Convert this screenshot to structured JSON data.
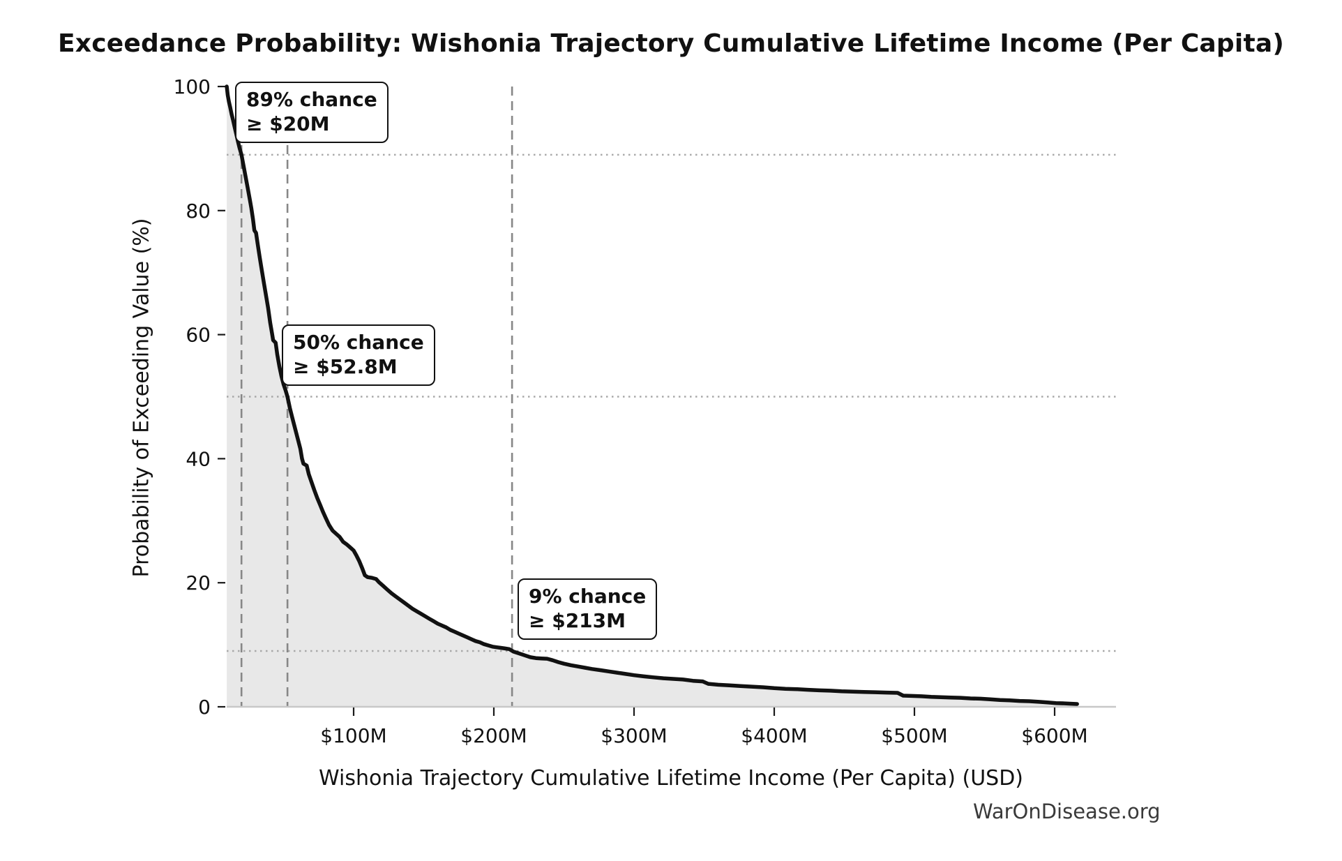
{
  "watermark": "WarOnDisease.org",
  "chart_data": {
    "type": "line",
    "title": "Exceedance Probability: Wishonia Trajectory Cumulative Lifetime Income (Per Capita)",
    "xlabel": "Wishonia Trajectory Cumulative Lifetime Income (Per Capita) (USD)",
    "ylabel": "Probability of Exceeding Value (%)",
    "x_unit": "USD millions",
    "xlim": [
      9.5,
      644
    ],
    "ylim": [
      0,
      100
    ],
    "grid": "reference lines only",
    "legend": "none",
    "x_ticks": [
      {
        "value": 100,
        "label": "$100M"
      },
      {
        "value": 200,
        "label": "$200M"
      },
      {
        "value": 300,
        "label": "$300M"
      },
      {
        "value": 400,
        "label": "$400M"
      },
      {
        "value": 500,
        "label": "$500M"
      },
      {
        "value": 600,
        "label": "$600M"
      }
    ],
    "y_ticks": [
      {
        "value": 0,
        "label": "0"
      },
      {
        "value": 20,
        "label": "20"
      },
      {
        "value": 40,
        "label": "40"
      },
      {
        "value": 60,
        "label": "60"
      },
      {
        "value": 80,
        "label": "80"
      },
      {
        "value": 100,
        "label": "100"
      }
    ],
    "annotations": [
      {
        "label_line1": "89% chance",
        "label_line2": "≥ $20M",
        "probability_pct": 89,
        "value_musd": 20
      },
      {
        "label_line1": "50% chance",
        "label_line2": "≥ $52.8M",
        "probability_pct": 50,
        "value_musd": 52.8
      },
      {
        "label_line1": "9% chance",
        "label_line2": "≥ $213M",
        "probability_pct": 9,
        "value_musd": 213
      }
    ],
    "points": [
      [
        9.5,
        100
      ],
      [
        10.2,
        98.6
      ],
      [
        11,
        97.6
      ],
      [
        12,
        96.6
      ],
      [
        13,
        95.5
      ],
      [
        14,
        94.6
      ],
      [
        15,
        93.6
      ],
      [
        16.2,
        92.4
      ],
      [
        17.4,
        91.2
      ],
      [
        18.6,
        90.1
      ],
      [
        20,
        89
      ],
      [
        21.5,
        87.2
      ],
      [
        23,
        85.4
      ],
      [
        24.5,
        83.6
      ],
      [
        26,
        81.7
      ],
      [
        27,
        80.4
      ],
      [
        28.2,
        78.6
      ],
      [
        29.2,
        76.8
      ],
      [
        30.4,
        76.4
      ],
      [
        31.5,
        74.7
      ],
      [
        33,
        72.5
      ],
      [
        34.5,
        70.4
      ],
      [
        36,
        68.3
      ],
      [
        37.5,
        66.3
      ],
      [
        39,
        64.3
      ],
      [
        40.5,
        61.9
      ],
      [
        41.8,
        60.2
      ],
      [
        42.6,
        59.1
      ],
      [
        44.4,
        58.7
      ],
      [
        45.5,
        56.8
      ],
      [
        47,
        54.9
      ],
      [
        48.5,
        53.3
      ],
      [
        50,
        52
      ],
      [
        51.5,
        51
      ],
      [
        52.8,
        50
      ],
      [
        54.5,
        48.2
      ],
      [
        56,
        46.8
      ],
      [
        57.5,
        45.5
      ],
      [
        59,
        44.2
      ],
      [
        60.5,
        42.9
      ],
      [
        62,
        41.6
      ],
      [
        63.2,
        40
      ],
      [
        64.2,
        39.2
      ],
      [
        66.5,
        38.9
      ],
      [
        68,
        37.5
      ],
      [
        70,
        36.2
      ],
      [
        72,
        34.9
      ],
      [
        74,
        33.7
      ],
      [
        76,
        32.6
      ],
      [
        78,
        31.5
      ],
      [
        80,
        30.5
      ],
      [
        82.5,
        29.3
      ],
      [
        85,
        28.4
      ],
      [
        87.5,
        27.9
      ],
      [
        90,
        27.4
      ],
      [
        92.5,
        26.6
      ],
      [
        95,
        26.2
      ],
      [
        97.5,
        25.7
      ],
      [
        100,
        25.2
      ],
      [
        102,
        24.4
      ],
      [
        104,
        23.5
      ],
      [
        106,
        22.4
      ],
      [
        108,
        21.2
      ],
      [
        110,
        20.9
      ],
      [
        113,
        20.8
      ],
      [
        116,
        20.6
      ],
      [
        118,
        20.1
      ],
      [
        121,
        19.5
      ],
      [
        124,
        18.9
      ],
      [
        127,
        18.3
      ],
      [
        130,
        17.8
      ],
      [
        133,
        17.3
      ],
      [
        136,
        16.8
      ],
      [
        139,
        16.3
      ],
      [
        142,
        15.8
      ],
      [
        145,
        15.4
      ],
      [
        148,
        15
      ],
      [
        151,
        14.6
      ],
      [
        154,
        14.2
      ],
      [
        157,
        13.8
      ],
      [
        160,
        13.4
      ],
      [
        163,
        13.1
      ],
      [
        166,
        12.8
      ],
      [
        169,
        12.4
      ],
      [
        172,
        12.1
      ],
      [
        175,
        11.8
      ],
      [
        178,
        11.5
      ],
      [
        181,
        11.2
      ],
      [
        184,
        10.9
      ],
      [
        187,
        10.6
      ],
      [
        190,
        10.4
      ],
      [
        193,
        10.1
      ],
      [
        196,
        9.9
      ],
      [
        199,
        9.7
      ],
      [
        202,
        9.6
      ],
      [
        205,
        9.5
      ],
      [
        208,
        9.4
      ],
      [
        211,
        9.3
      ],
      [
        214,
        8.9
      ],
      [
        218,
        8.6
      ],
      [
        222,
        8.3
      ],
      [
        226,
        8
      ],
      [
        230,
        7.85
      ],
      [
        234,
        7.8
      ],
      [
        238,
        7.75
      ],
      [
        242,
        7.5
      ],
      [
        246,
        7.2
      ],
      [
        250,
        6.95
      ],
      [
        255,
        6.7
      ],
      [
        260,
        6.5
      ],
      [
        265,
        6.3
      ],
      [
        270,
        6.1
      ],
      [
        276,
        5.9
      ],
      [
        282,
        5.7
      ],
      [
        288,
        5.5
      ],
      [
        294,
        5.3
      ],
      [
        300,
        5.1
      ],
      [
        307,
        4.9
      ],
      [
        314,
        4.75
      ],
      [
        321,
        4.6
      ],
      [
        328,
        4.5
      ],
      [
        335,
        4.4
      ],
      [
        342,
        4.2
      ],
      [
        349,
        4.1
      ],
      [
        353,
        3.7
      ],
      [
        360,
        3.55
      ],
      [
        368,
        3.45
      ],
      [
        376,
        3.35
      ],
      [
        384,
        3.25
      ],
      [
        392,
        3.15
      ],
      [
        400,
        3
      ],
      [
        408,
        2.9
      ],
      [
        416,
        2.85
      ],
      [
        424,
        2.75
      ],
      [
        432,
        2.65
      ],
      [
        440,
        2.6
      ],
      [
        448,
        2.5
      ],
      [
        456,
        2.45
      ],
      [
        464,
        2.4
      ],
      [
        472,
        2.35
      ],
      [
        480,
        2.3
      ],
      [
        488,
        2.25
      ],
      [
        492,
        1.8
      ],
      [
        498,
        1.75
      ],
      [
        505,
        1.7
      ],
      [
        512,
        1.6
      ],
      [
        519,
        1.55
      ],
      [
        526,
        1.5
      ],
      [
        533,
        1.45
      ],
      [
        540,
        1.35
      ],
      [
        547,
        1.3
      ],
      [
        554,
        1.2
      ],
      [
        561,
        1.1
      ],
      [
        568,
        1.05
      ],
      [
        575,
        0.95
      ],
      [
        582,
        0.9
      ],
      [
        589,
        0.8
      ],
      [
        595,
        0.7
      ],
      [
        601,
        0.6
      ],
      [
        607,
        0.55
      ],
      [
        612,
        0.5
      ],
      [
        616,
        0.45
      ]
    ],
    "colors": {
      "curve": "#111111",
      "fill": "#e8e8e8",
      "dashed_ref": "#878787",
      "dotted_ref": "#a8a8a8",
      "spine": "#c8c8c8",
      "text": "#111111",
      "watermark": "#3a3a3a"
    }
  }
}
